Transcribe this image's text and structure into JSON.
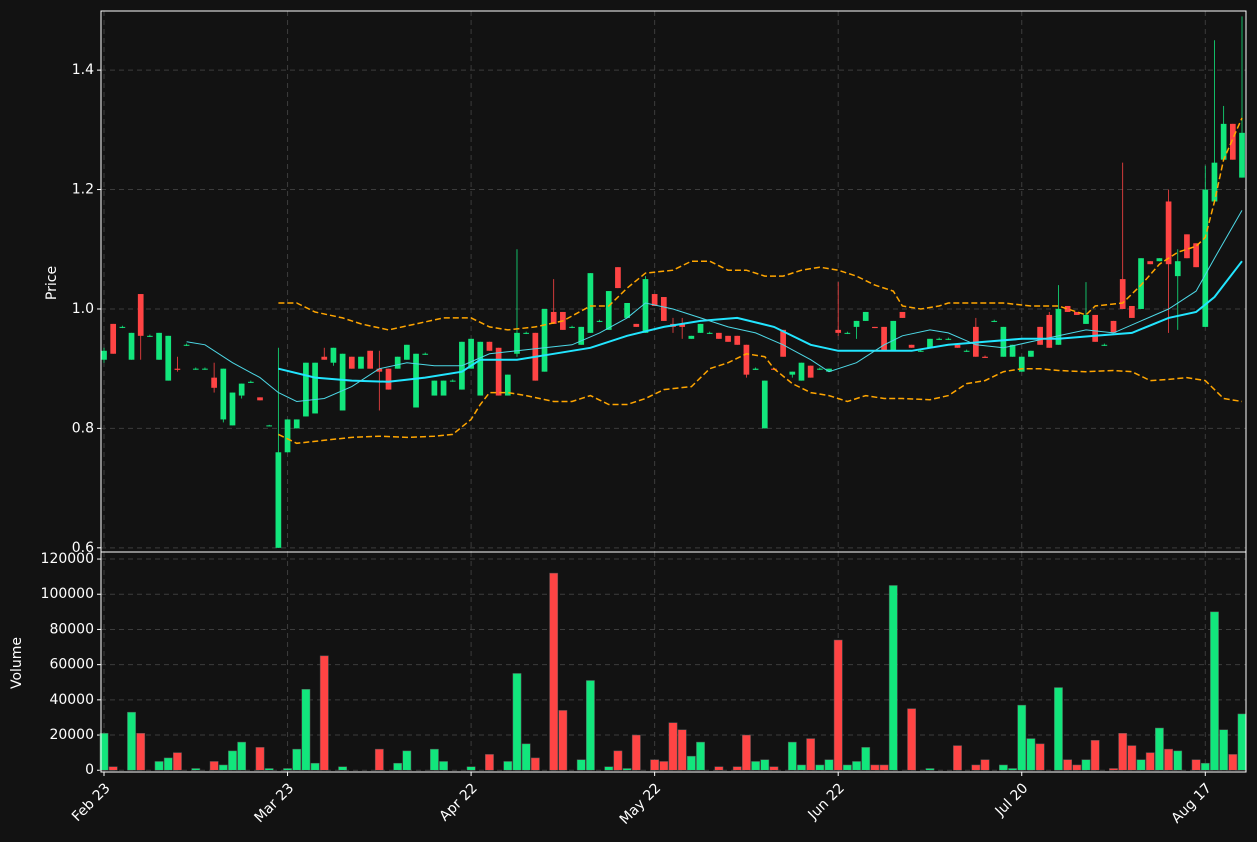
{
  "chart_data": {
    "type": "candlestick",
    "y_label": "Price",
    "y2_label": "Volume",
    "up_color": "#12e67c",
    "down_color": "#ff4444",
    "grid": true,
    "categories": [
      "Feb 23",
      null,
      null,
      null,
      null,
      null,
      null,
      null,
      null,
      null,
      null,
      null,
      null,
      null,
      null,
      null,
      null,
      null,
      null,
      null,
      "Mar 23",
      null,
      null,
      null,
      null,
      null,
      null,
      null,
      null,
      null,
      null,
      null,
      null,
      null,
      null,
      null,
      null,
      null,
      null,
      null,
      "Apr 22",
      null,
      null,
      null,
      null,
      null,
      null,
      null,
      null,
      null,
      null,
      null,
      null,
      null,
      null,
      null,
      null,
      null,
      null,
      null,
      "May 22",
      null,
      null,
      null,
      null,
      null,
      null,
      null,
      null,
      null,
      null,
      null,
      null,
      null,
      null,
      null,
      null,
      null,
      null,
      null,
      "Jun 22",
      null,
      null,
      null,
      null,
      null,
      null,
      null,
      null,
      null,
      null,
      null,
      null,
      null,
      null,
      null,
      null,
      null,
      null,
      null,
      "Jul 20",
      null,
      null,
      null,
      null,
      null,
      null,
      null,
      null,
      null,
      null,
      null,
      null,
      null,
      null,
      null,
      null,
      null,
      null,
      null,
      "Aug 17",
      null,
      null,
      null,
      null
    ],
    "ohlc": [
      [
        0.915,
        0.935,
        0.91,
        0.93
      ],
      [
        0.975,
        0.975,
        0.925,
        0.925
      ],
      [
        0.97,
        0.972,
        0.968,
        0.97
      ],
      [
        0.915,
        0.96,
        0.915,
        0.96
      ],
      [
        1.025,
        1.025,
        0.915,
        0.955
      ],
      [
        0.955,
        0.957,
        0.953,
        0.955
      ],
      [
        0.915,
        0.96,
        0.915,
        0.96
      ],
      [
        0.88,
        0.955,
        0.88,
        0.955
      ],
      [
        0.9,
        0.92,
        0.895,
        0.898
      ],
      [
        0.94,
        0.942,
        0.938,
        0.94
      ],
      [
        0.9,
        0.902,
        0.898,
        0.9
      ],
      [
        0.9,
        0.902,
        0.898,
        0.9
      ],
      [
        0.885,
        0.91,
        0.86,
        0.868
      ],
      [
        0.815,
        0.9,
        0.81,
        0.9
      ],
      [
        0.805,
        0.86,
        0.805,
        0.86
      ],
      [
        0.855,
        0.875,
        0.85,
        0.875
      ],
      [
        0.878,
        0.88,
        0.876,
        0.878
      ],
      [
        0.852,
        0.852,
        0.847,
        0.847
      ],
      [
        0.805,
        0.806,
        0.804,
        0.805
      ],
      [
        0.6,
        0.935,
        0.6,
        0.76
      ],
      [
        0.76,
        0.815,
        0.76,
        0.815
      ],
      [
        0.8,
        0.815,
        0.8,
        0.815
      ],
      [
        0.82,
        0.91,
        0.82,
        0.91
      ],
      [
        0.825,
        0.91,
        0.825,
        0.91
      ],
      [
        0.92,
        0.935,
        0.915,
        0.915
      ],
      [
        0.91,
        0.935,
        0.905,
        0.935
      ],
      [
        0.83,
        0.925,
        0.83,
        0.925
      ],
      [
        0.92,
        0.92,
        0.9,
        0.9
      ],
      [
        0.9,
        0.92,
        0.9,
        0.92
      ],
      [
        0.93,
        0.93,
        0.9,
        0.9
      ],
      [
        0.9,
        0.93,
        0.83,
        0.895
      ],
      [
        0.9,
        0.9,
        0.865,
        0.865
      ],
      [
        0.9,
        0.92,
        0.9,
        0.92
      ],
      [
        0.915,
        0.94,
        0.915,
        0.94
      ],
      [
        0.835,
        0.925,
        0.835,
        0.925
      ],
      [
        0.925,
        0.927,
        0.923,
        0.925
      ],
      [
        0.855,
        0.88,
        0.855,
        0.88
      ],
      [
        0.855,
        0.88,
        0.855,
        0.88
      ],
      [
        0.88,
        0.882,
        0.878,
        0.88
      ],
      [
        0.865,
        0.945,
        0.865,
        0.945
      ],
      [
        0.9,
        0.95,
        0.9,
        0.95
      ],
      [
        0.855,
        0.945,
        0.855,
        0.945
      ],
      [
        0.945,
        0.945,
        0.93,
        0.93
      ],
      [
        0.935,
        0.935,
        0.855,
        0.855
      ],
      [
        0.855,
        0.89,
        0.855,
        0.89
      ],
      [
        0.925,
        1.1,
        0.92,
        0.96
      ],
      [
        0.96,
        0.962,
        0.958,
        0.96
      ],
      [
        0.96,
        0.96,
        0.88,
        0.88
      ],
      [
        0.895,
        1.0,
        0.895,
        1.0
      ],
      [
        0.995,
        1.05,
        0.975,
        0.975
      ],
      [
        0.995,
        0.995,
        0.965,
        0.965
      ],
      [
        0.97,
        0.972,
        0.968,
        0.97
      ],
      [
        0.94,
        0.97,
        0.94,
        0.97
      ],
      [
        0.96,
        1.06,
        0.96,
        1.06
      ],
      [
        0.98,
        0.982,
        0.978,
        0.98
      ],
      [
        0.965,
        1.03,
        0.965,
        1.03
      ],
      [
        1.07,
        1.07,
        1.035,
        1.035
      ],
      [
        0.985,
        1.01,
        0.985,
        1.01
      ],
      [
        0.975,
        0.975,
        0.97,
        0.97
      ],
      [
        0.96,
        1.055,
        0.96,
        1.05
      ],
      [
        1.025,
        1.025,
        1.005,
        1.005
      ],
      [
        1.02,
        1.02,
        0.98,
        0.98
      ],
      [
        0.975,
        0.985,
        0.96,
        0.97
      ],
      [
        0.975,
        0.985,
        0.95,
        0.97
      ],
      [
        0.95,
        0.955,
        0.95,
        0.955
      ],
      [
        0.96,
        0.975,
        0.96,
        0.975
      ],
      [
        0.96,
        0.962,
        0.958,
        0.96
      ],
      [
        0.96,
        0.96,
        0.95,
        0.95
      ],
      [
        0.955,
        0.955,
        0.945,
        0.945
      ],
      [
        0.955,
        0.955,
        0.94,
        0.94
      ],
      [
        0.94,
        0.94,
        0.885,
        0.89
      ],
      [
        0.898,
        0.902,
        0.898,
        0.9
      ],
      [
        0.8,
        0.88,
        0.8,
        0.88
      ],
      [
        0.9,
        0.9,
        0.898,
        0.898
      ],
      [
        0.965,
        0.965,
        0.92,
        0.92
      ],
      [
        0.89,
        0.895,
        0.885,
        0.895
      ],
      [
        0.88,
        0.91,
        0.88,
        0.91
      ],
      [
        0.905,
        0.905,
        0.885,
        0.885
      ],
      [
        0.9,
        0.902,
        0.898,
        0.9
      ],
      [
        0.895,
        0.9,
        0.895,
        0.9
      ],
      [
        0.965,
        1.045,
        0.955,
        0.96
      ],
      [
        0.96,
        0.962,
        0.958,
        0.96
      ],
      [
        0.97,
        0.98,
        0.95,
        0.98
      ],
      [
        0.98,
        0.995,
        0.98,
        0.995
      ],
      [
        0.97,
        0.97,
        0.968,
        0.968
      ],
      [
        0.97,
        0.97,
        0.93,
        0.93
      ],
      [
        0.93,
        0.98,
        0.93,
        0.98
      ],
      [
        0.995,
        0.995,
        0.985,
        0.985
      ],
      [
        0.94,
        0.94,
        0.935,
        0.935
      ],
      [
        0.93,
        0.932,
        0.928,
        0.93
      ],
      [
        0.935,
        0.95,
        0.935,
        0.95
      ],
      [
        0.95,
        0.952,
        0.948,
        0.95
      ],
      [
        0.95,
        0.952,
        0.948,
        0.95
      ],
      [
        0.94,
        0.94,
        0.935,
        0.935
      ],
      [
        0.93,
        0.932,
        0.928,
        0.93
      ],
      [
        0.97,
        0.985,
        0.92,
        0.92
      ],
      [
        0.92,
        0.922,
        0.918,
        0.918
      ],
      [
        0.98,
        0.982,
        0.978,
        0.98
      ],
      [
        0.92,
        0.97,
        0.92,
        0.97
      ],
      [
        0.92,
        0.94,
        0.92,
        0.94
      ],
      [
        0.895,
        0.92,
        0.895,
        0.92
      ],
      [
        0.92,
        0.93,
        0.92,
        0.93
      ],
      [
        0.97,
        0.97,
        0.94,
        0.94
      ],
      [
        0.99,
        0.995,
        0.935,
        0.935
      ],
      [
        0.94,
        1.04,
        0.94,
        1.0
      ],
      [
        1.005,
        1.005,
        0.995,
        0.995
      ],
      [
        0.995,
        0.995,
        0.99,
        0.99
      ],
      [
        0.975,
        1.045,
        0.975,
        0.99
      ],
      [
        0.99,
        0.99,
        0.945,
        0.945
      ],
      [
        0.94,
        0.942,
        0.938,
        0.94
      ],
      [
        0.98,
        0.98,
        0.96,
        0.96
      ],
      [
        1.05,
        1.245,
        1.0,
        1.0
      ],
      [
        1.005,
        1.005,
        0.985,
        0.985
      ],
      [
        1.0,
        1.085,
        1.0,
        1.085
      ],
      [
        1.08,
        1.08,
        1.075,
        1.075
      ],
      [
        1.08,
        1.085,
        1.08,
        1.085
      ],
      [
        1.18,
        1.2,
        0.96,
        1.075
      ],
      [
        1.055,
        1.1,
        0.965,
        1.08
      ],
      [
        1.125,
        1.125,
        1.085,
        1.085
      ],
      [
        1.11,
        1.11,
        1.07,
        1.07
      ],
      [
        0.97,
        1.24,
        0.97,
        1.2
      ],
      [
        1.18,
        1.45,
        1.18,
        1.245
      ],
      [
        1.25,
        1.34,
        1.25,
        1.31
      ],
      [
        1.31,
        1.31,
        1.25,
        1.25
      ],
      [
        1.22,
        1.49,
        1.22,
        1.295
      ]
    ],
    "volume": [
      21000,
      2000,
      0,
      33000,
      21000,
      0,
      5000,
      7000,
      10000,
      0,
      1000,
      0,
      5000,
      3000,
      11000,
      16000,
      0,
      13000,
      1000,
      0,
      1000,
      12000,
      46000,
      4000,
      65000,
      0,
      2000,
      0,
      0,
      0,
      12000,
      0,
      4000,
      11000,
      0,
      0,
      12000,
      5000,
      0,
      0,
      2000,
      0,
      9000,
      0,
      5000,
      55000,
      15000,
      7000,
      0,
      112000,
      34000,
      0,
      6000,
      51000,
      0,
      2000,
      11000,
      1000,
      20000,
      0,
      6000,
      5000,
      27000,
      23000,
      8000,
      16000,
      0,
      2000,
      0,
      2000,
      20000,
      5000,
      6000,
      2000,
      0,
      16000,
      3000,
      18000,
      3000,
      6000,
      74000,
      3000,
      5000,
      13000,
      3000,
      3000,
      105000,
      0,
      35000,
      0,
      1000,
      0,
      0,
      14000,
      0,
      3000,
      6000,
      0,
      3000,
      1000,
      37000,
      18000,
      15000,
      0,
      47000,
      6000,
      3000,
      6000,
      17000,
      0,
      1000,
      21000,
      14000,
      6000,
      10000,
      24000,
      12000,
      11000,
      0,
      6000,
      4000,
      90000,
      23000,
      9000,
      32000
    ],
    "overlays": [
      {
        "color": "#22e5ff",
        "width": 2,
        "dash": false,
        "x": [
          19,
          23,
          27,
          31,
          35,
          39,
          41,
          45,
          49,
          53,
          57,
          61,
          65,
          69,
          73,
          77,
          80,
          84,
          88,
          92,
          96,
          100,
          104,
          108,
          112,
          116,
          119,
          121,
          124
        ],
        "values": [
          0.9,
          0.885,
          0.88,
          0.878,
          0.885,
          0.895,
          0.915,
          0.915,
          0.925,
          0.935,
          0.955,
          0.97,
          0.98,
          0.985,
          0.97,
          0.94,
          0.93,
          0.93,
          0.93,
          0.94,
          0.945,
          0.95,
          0.95,
          0.955,
          0.96,
          0.985,
          0.995,
          1.02,
          1.08
        ]
      },
      {
        "color": "#4dd8e6",
        "width": 1,
        "dash": false,
        "x": [
          9,
          11,
          14,
          17,
          19,
          21,
          24,
          27,
          30,
          33,
          36,
          39,
          42,
          45,
          48,
          51,
          54,
          57,
          59,
          62,
          65,
          68,
          71,
          74,
          77,
          79,
          82,
          85,
          87,
          90,
          92,
          95,
          98,
          101,
          104,
          107,
          110,
          113,
          116,
          119,
          121,
          124
        ],
        "values": [
          0.945,
          0.94,
          0.91,
          0.885,
          0.86,
          0.845,
          0.85,
          0.87,
          0.9,
          0.91,
          0.905,
          0.905,
          0.925,
          0.93,
          0.935,
          0.94,
          0.96,
          0.985,
          1.01,
          1.0,
          0.985,
          0.97,
          0.96,
          0.94,
          0.915,
          0.895,
          0.91,
          0.94,
          0.955,
          0.965,
          0.96,
          0.94,
          0.935,
          0.945,
          0.955,
          0.965,
          0.96,
          0.98,
          1.0,
          1.03,
          1.085,
          1.165
        ]
      },
      {
        "color": "#ffa500",
        "width": 1.5,
        "dash": true,
        "x": [
          19,
          21,
          23,
          26,
          28,
          31,
          34,
          37,
          40,
          42,
          44,
          47,
          50,
          53,
          55,
          57,
          59,
          62,
          64,
          66,
          68,
          70,
          72,
          74,
          76,
          78,
          80,
          82,
          84,
          86,
          87,
          89,
          91,
          92,
          95,
          98,
          101,
          104,
          107,
          108,
          111,
          113,
          115,
          117,
          119,
          120,
          121,
          122,
          124
        ],
        "values": [
          1.01,
          1.01,
          0.995,
          0.985,
          0.975,
          0.965,
          0.975,
          0.985,
          0.985,
          0.97,
          0.965,
          0.97,
          0.98,
          1.005,
          1.005,
          1.035,
          1.06,
          1.065,
          1.08,
          1.08,
          1.065,
          1.065,
          1.055,
          1.055,
          1.065,
          1.07,
          1.065,
          1.055,
          1.04,
          1.03,
          1.005,
          1.0,
          1.005,
          1.01,
          1.01,
          1.01,
          1.005,
          1.005,
          0.99,
          1.005,
          1.01,
          1.04,
          1.075,
          1.095,
          1.105,
          1.12,
          1.18,
          1.25,
          1.32
        ]
      },
      {
        "color": "#ffa500",
        "width": 1.5,
        "dash": true,
        "x": [
          19,
          21,
          24,
          27,
          30,
          33,
          36,
          38,
          40,
          41,
          42,
          44,
          46,
          49,
          51,
          53,
          55,
          57,
          59,
          61,
          64,
          66,
          68,
          70,
          72,
          73,
          75,
          77,
          79,
          81,
          83,
          85,
          87,
          90,
          92,
          94,
          96,
          98,
          100,
          102,
          104,
          107,
          110,
          112,
          114,
          116,
          118,
          120,
          122,
          124
        ],
        "values": [
          0.79,
          0.775,
          0.78,
          0.785,
          0.787,
          0.785,
          0.787,
          0.79,
          0.815,
          0.84,
          0.86,
          0.86,
          0.855,
          0.845,
          0.845,
          0.855,
          0.84,
          0.84,
          0.85,
          0.865,
          0.87,
          0.9,
          0.91,
          0.925,
          0.92,
          0.9,
          0.875,
          0.86,
          0.855,
          0.845,
          0.855,
          0.85,
          0.85,
          0.848,
          0.855,
          0.875,
          0.88,
          0.895,
          0.9,
          0.9,
          0.897,
          0.895,
          0.897,
          0.895,
          0.88,
          0.882,
          0.885,
          0.88,
          0.85,
          0.845
        ]
      }
    ],
    "ylim": [
      0.593,
      1.499
    ],
    "yticks": [
      0.6,
      0.8,
      {
        "value": 1,
        "label": "1.0"
      },
      1.2,
      1.4
    ],
    "y2lim": [
      -1000,
      124000
    ],
    "y2ticks": [
      0,
      20000,
      40000,
      60000,
      80000,
      100000,
      120000
    ]
  }
}
